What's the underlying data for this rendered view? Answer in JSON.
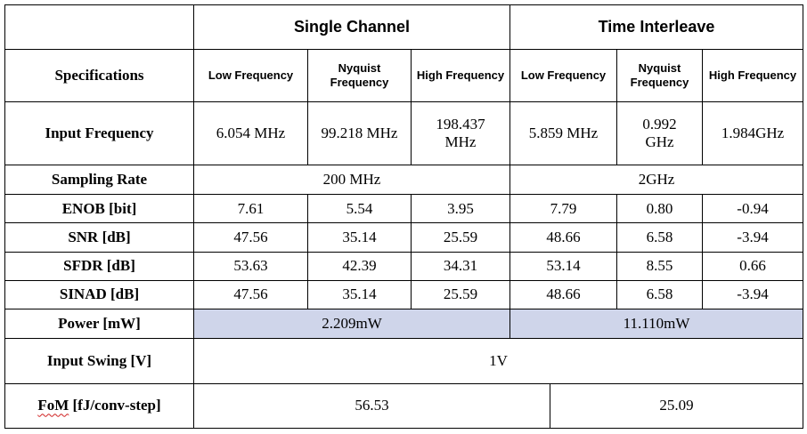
{
  "groups": {
    "single": "Single Channel",
    "interleave": "Time Interleave"
  },
  "specifications_label": "Specifications",
  "sub_headers": [
    "Low Frequency",
    "Nyquist Frequency",
    "High Frequency",
    "Low Frequency",
    "Nyquist Frequency",
    "High Frequency"
  ],
  "rows": {
    "input_frequency": {
      "label": "Input Frequency",
      "values": [
        "6.054 MHz",
        "99.218 MHz",
        "198.437 MHz",
        "5.859 MHz",
        "0.992 GHz",
        "1.984GHz"
      ]
    },
    "sampling_rate": {
      "label": "Sampling Rate",
      "single": "200 MHz",
      "interleave": "2GHz"
    },
    "enob": {
      "label": "ENOB [bit]",
      "values": [
        "7.61",
        "5.54",
        "3.95",
        "7.79",
        "0.80",
        "-0.94"
      ]
    },
    "snr": {
      "label": "SNR [dB]",
      "values": [
        "47.56",
        "35.14",
        "25.59",
        "48.66",
        "6.58",
        "-3.94"
      ]
    },
    "sfdr": {
      "label": "SFDR [dB]",
      "values": [
        "53.63",
        "42.39",
        "34.31",
        "53.14",
        "8.55",
        "0.66"
      ]
    },
    "sinad": {
      "label": "SINAD [dB]",
      "values": [
        "47.56",
        "35.14",
        "25.59",
        "48.66",
        "6.58",
        "-3.94"
      ]
    },
    "power": {
      "label": "Power [mW]",
      "single": "2.209mW",
      "interleave": "11.110mW"
    },
    "input_swing": {
      "label": "Input Swing [V]",
      "value": "1V"
    },
    "fom": {
      "label_word": "FoM",
      "label_unit": " [fJ/conv-step]",
      "single": "56.53",
      "interleave": "25.09"
    }
  },
  "colors": {
    "shaded_row": "#cfd5ea",
    "spellcheck_underline": "#d02020"
  }
}
